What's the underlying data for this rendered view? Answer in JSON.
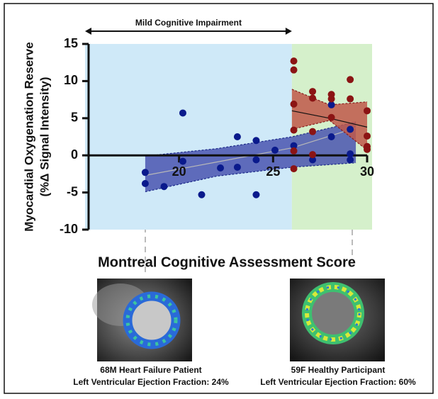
{
  "chart_data": {
    "type": "scatter",
    "ylabel": [
      "Myocardial Oxygenation Reserve",
      "(%Δ Signal Intensity)"
    ],
    "xlabel": "Montreal Cognitive Assessment Score",
    "annotation": "Mild Cognitive Impairment",
    "annotation_span": [
      15,
      26
    ],
    "xlim": [
      15,
      30
    ],
    "xticks": [
      20,
      25,
      30
    ],
    "ylim": [
      -10,
      15
    ],
    "yticks": [
      -10,
      -5,
      0,
      5,
      10,
      15
    ],
    "regions": [
      {
        "from": 15,
        "to": 26,
        "color": "#cfe9f8"
      },
      {
        "from": 26,
        "to": 30,
        "color": "#d5f0cb"
      }
    ],
    "bands": [
      {
        "color": "#4a55b0",
        "edge": "#1d2a8a",
        "line": "#b8b8b8",
        "x": [
          18.2,
          22,
          26,
          29.4
        ],
        "upper": [
          -0.1,
          0.9,
          2.5,
          4.5
        ],
        "lower": [
          -4.9,
          -2.8,
          -1.6,
          -1.0
        ],
        "fit": [
          -2.7,
          -0.9,
          1.0,
          3.7
        ]
      },
      {
        "color": "#c0584a",
        "edge": "#8a1d1d",
        "line": "#111111",
        "x": [
          26,
          28,
          30
        ],
        "upper": [
          8.9,
          6.8,
          7.2
        ],
        "lower": [
          3.5,
          4.7,
          0.7
        ],
        "fit": [
          6.0,
          5.0,
          3.8
        ]
      }
    ],
    "series": [
      {
        "color": "#0a1a8c",
        "x": [
          18.2,
          18.2,
          19.2,
          20.2,
          20.2,
          21.2,
          22.2,
          23.1,
          23.1,
          24.1,
          24.1,
          24.1,
          25.1,
          26.1,
          27.1,
          28.1,
          28.1,
          29.1,
          29.1,
          29.1
        ],
        "values": [
          -2.3,
          -3.8,
          -4.2,
          5.7,
          -0.8,
          -5.3,
          -1.7,
          2.5,
          -1.6,
          2.0,
          -0.6,
          -5.3,
          0.7,
          1.3,
          -0.6,
          6.8,
          2.5,
          3.5,
          0.2,
          -0.6
        ]
      },
      {
        "color": "#8b1414",
        "x": [
          26.1,
          26.1,
          26.1,
          26.1,
          26.1,
          26.1,
          27.1,
          27.1,
          27.1,
          27.1,
          28.1,
          28.1,
          28.1,
          29.1,
          29.1,
          30,
          30,
          30,
          30
        ],
        "values": [
          12.7,
          11.5,
          6.9,
          3.4,
          0.6,
          -1.8,
          8.6,
          7.7,
          3.2,
          0.1,
          8.2,
          7.6,
          5.1,
          10.2,
          7.6,
          6.0,
          2.6,
          1.2,
          0.8
        ]
      }
    ]
  },
  "panels": [
    {
      "line1": "68M Heart Failure Patient",
      "line2": "Left Ventricular Ejection Fraction: 24%"
    },
    {
      "line1": "59F Healthy Participant",
      "line2": "Left Ventricular Ejection Fraction: 60%"
    }
  ]
}
